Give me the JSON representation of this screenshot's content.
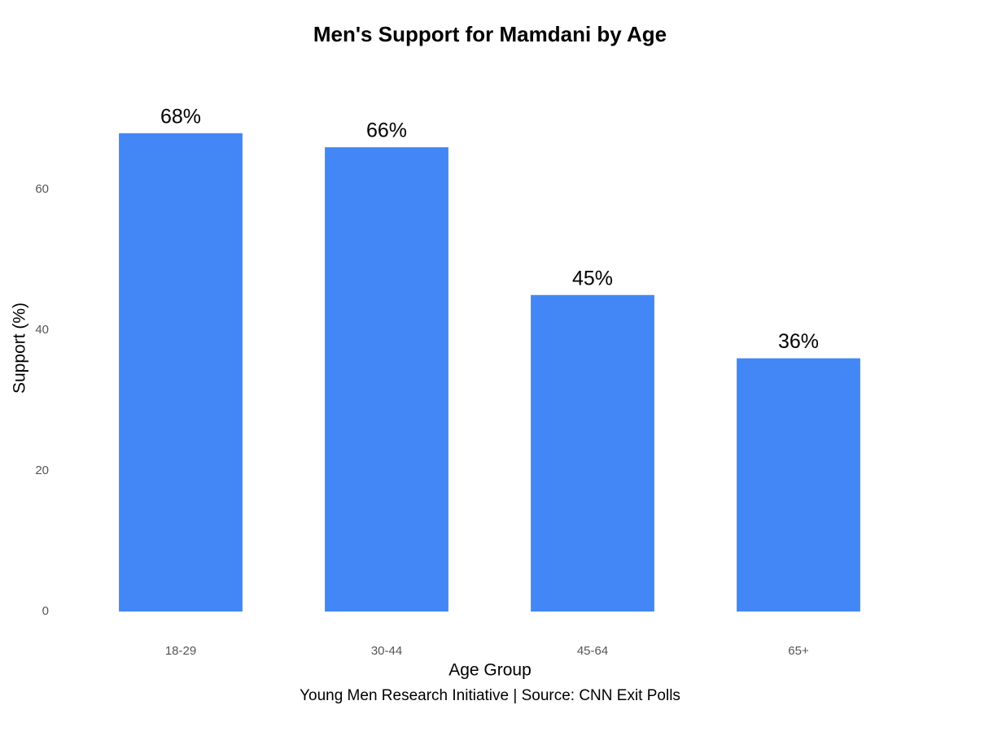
{
  "chart_data": {
    "type": "bar",
    "title": "Men's Support for Mamdani by Age",
    "x_label": "Age Group",
    "y_label": "Support (%)",
    "caption": "Young Men Research Initiative | Source: CNN Exit Polls",
    "categories": [
      "18-29",
      "30-44",
      "45-64",
      "65+"
    ],
    "values": [
      68,
      66,
      45,
      36
    ],
    "value_labels": [
      "68%",
      "66%",
      "45%",
      "36%"
    ],
    "color": "#4287f5",
    "ylim": [
      0,
      72
    ],
    "yticks": [
      0,
      20,
      40,
      60
    ],
    "grid": false
  }
}
